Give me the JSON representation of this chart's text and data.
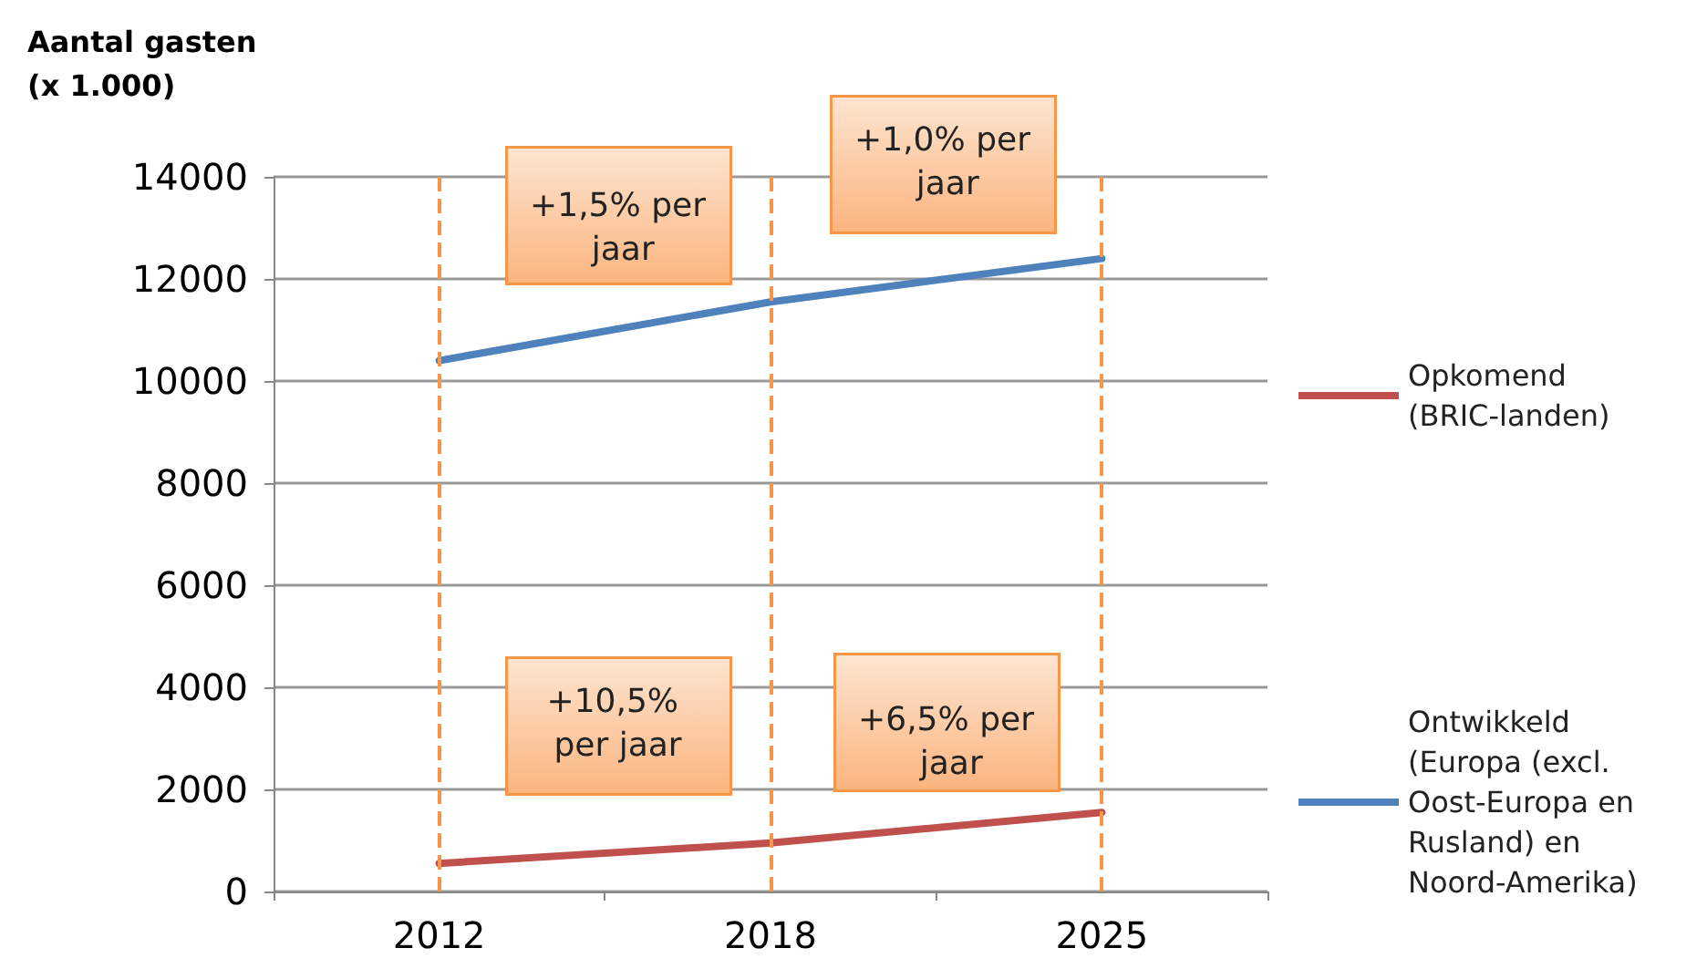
{
  "chart_data": {
    "type": "line",
    "ylabel": "Aantal gasten (x 1.000)",
    "categories": [
      "2012",
      "2018",
      "2025"
    ],
    "series": [
      {
        "name": "Opkomend (BRIC-landen)",
        "color": "#c0504d",
        "values": [
          550,
          950,
          1550
        ]
      },
      {
        "name": "Ontwikkeld (Europa (excl. Oost-Europa en Rusland) en Noord-Amerika)",
        "color": "#4f81bd",
        "values": [
          10400,
          11550,
          12400
        ]
      }
    ],
    "ylim": [
      0,
      14000
    ],
    "yticks": [
      0,
      2000,
      4000,
      6000,
      8000,
      10000,
      12000,
      14000
    ],
    "grid": "y",
    "legend": "right",
    "marker": "none",
    "line_style": "solid",
    "ref_lines": [
      {
        "axis": "x",
        "value": "2012",
        "color": "#f79646",
        "line_style": "dashed"
      },
      {
        "axis": "x",
        "value": "2018",
        "color": "#f79646",
        "line_style": "dashed"
      },
      {
        "axis": "x",
        "value": "2025",
        "color": "#f79646",
        "line_style": "dashed"
      }
    ],
    "annotations": [
      "+1,5% per jaar",
      "+1,0% per jaar",
      "+10,5% per jaar",
      "+6,5% per jaar"
    ]
  }
}
